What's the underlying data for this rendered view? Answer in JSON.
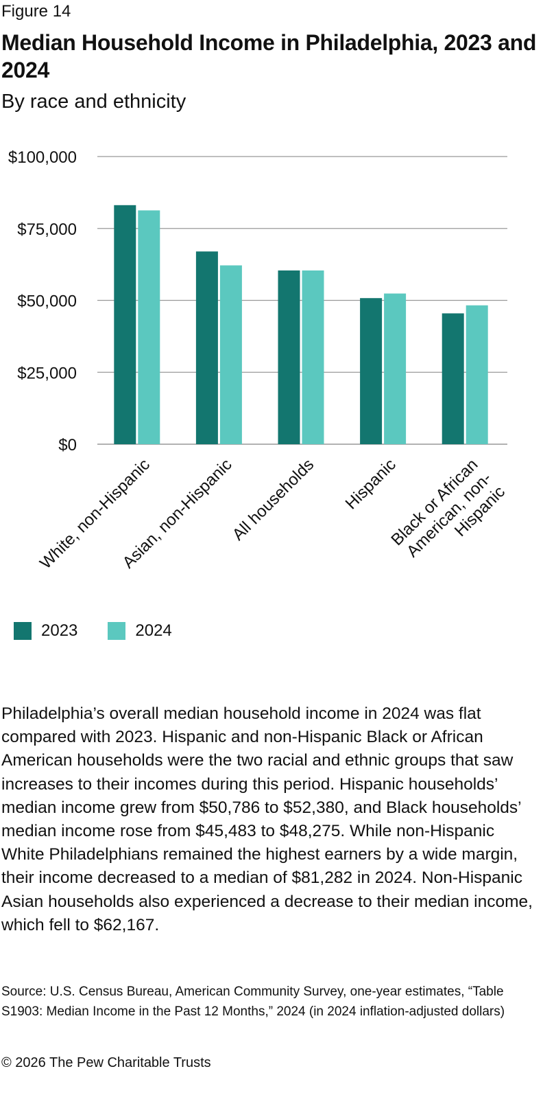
{
  "figure_label": "Figure 14",
  "title": "Median Household Income in Philadelphia, 2023 and 2024",
  "subtitle": "By race and ethnicity",
  "colors": {
    "series_2023": "#13766f",
    "series_2024": "#5bc8bf",
    "grid": "#999999"
  },
  "chart_data": {
    "type": "bar",
    "categories": [
      [
        "White, non-Hispanic"
      ],
      [
        "Asian, non-Hispanic"
      ],
      [
        "All households"
      ],
      [
        "Hispanic"
      ],
      [
        "Black or African",
        "American, non-",
        "Hispanic"
      ]
    ],
    "series": [
      {
        "name": "2023",
        "values": [
          83100,
          67000,
          60400,
          50786,
          45483
        ]
      },
      {
        "name": "2024",
        "values": [
          81282,
          62167,
          60400,
          52380,
          48275
        ]
      }
    ],
    "yticks": [
      "$0",
      "$25,000",
      "$50,000",
      "$75,000",
      "$100,000"
    ],
    "ylim": [
      0,
      100000
    ],
    "grid": true,
    "legend_position": "bottom-left",
    "xlabel": "",
    "ylabel": ""
  },
  "legend": [
    {
      "label": "2023"
    },
    {
      "label": "2024"
    }
  ],
  "body_text": "Philadelphia’s overall median household income in 2024 was flat compared with 2023. Hispanic and non-Hispanic Black or African American households were the two racial and ethnic groups that saw increases to their incomes during this period. Hispanic households’ median income grew from $50,786 to $52,380, and Black households’ median income rose from $45,483 to $48,275. While non-Hispanic White Philadelphians remained the highest earners by a wide margin, their income decreased to a median of $81,282 in 2024. Non-Hispanic Asian households also experienced a decrease to their median income, which fell to $62,167.",
  "source": "Source: U.S. Census Bureau, American Community Survey, one-year estimates, “Table S1903: Median Income in the Past 12 Months,” 2024 (in 2024 inflation-adjusted dollars)",
  "copyright": "© 2026 The Pew Charitable Trusts"
}
